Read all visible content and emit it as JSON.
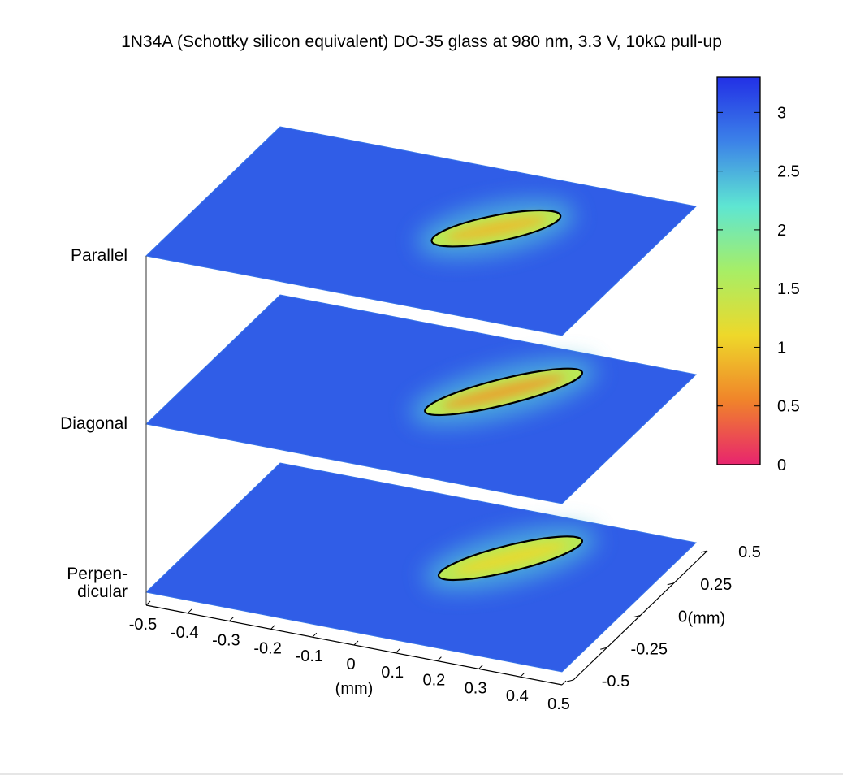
{
  "chart_data": {
    "type": "heatmap",
    "title": "1N34A (Schottky silicon equivalent) DO-35 glass at 980 nm, 3.3 V, 10kΩ pull-up",
    "xlabel": "(mm)",
    "ylabel": "(mm)",
    "xlim": [
      -0.5,
      0.5
    ],
    "ylim": [
      -0.5,
      0.5
    ],
    "x_ticks": [
      "-0.5",
      "-0.4",
      "-0.3",
      "-0.2",
      "-0.1",
      "0",
      "0.1",
      "0.2",
      "0.3",
      "0.4",
      "0.5"
    ],
    "y_ticks": [
      "-0.5",
      "-0.25",
      "0",
      "0.25",
      "0.5"
    ],
    "colorbar": {
      "range": [
        0,
        3.3
      ],
      "ticks": [
        "0",
        "0.5",
        "1",
        "1.5",
        "2",
        "2.5",
        "3"
      ],
      "colors": [
        "#e8246e",
        "#f0842a",
        "#eed82a",
        "#a7ee66",
        "#5ee6d2",
        "#3c82e8",
        "#2230e6"
      ]
    },
    "layers": [
      {
        "name": "Perpen-\ndicular",
        "label_lines": [
          "Perpen-",
          "dicular"
        ],
        "background_value": 3.0,
        "spot": {
          "x_range": [
            0.06,
            0.26
          ],
          "y_range": [
            -0.02,
            0.36
          ],
          "min_value": 1.1,
          "contour_level": 1.8
        }
      },
      {
        "name": "Diagonal",
        "label_lines": [
          "Diagonal"
        ],
        "background_value": 3.0,
        "spot": {
          "x_range": [
            0.04,
            0.26
          ],
          "y_range": [
            -0.06,
            0.36
          ],
          "min_value": 0.7,
          "contour_level": 1.8
        }
      },
      {
        "name": "Parallel",
        "label_lines": [
          "Parallel"
        ],
        "background_value": 3.0,
        "spot": {
          "x_range": [
            0.05,
            0.24
          ],
          "y_range": [
            -0.04,
            0.26
          ],
          "min_value": 0.9,
          "contour_level": 1.8
        }
      }
    ],
    "grid": false,
    "legend": "colorbar-right"
  }
}
